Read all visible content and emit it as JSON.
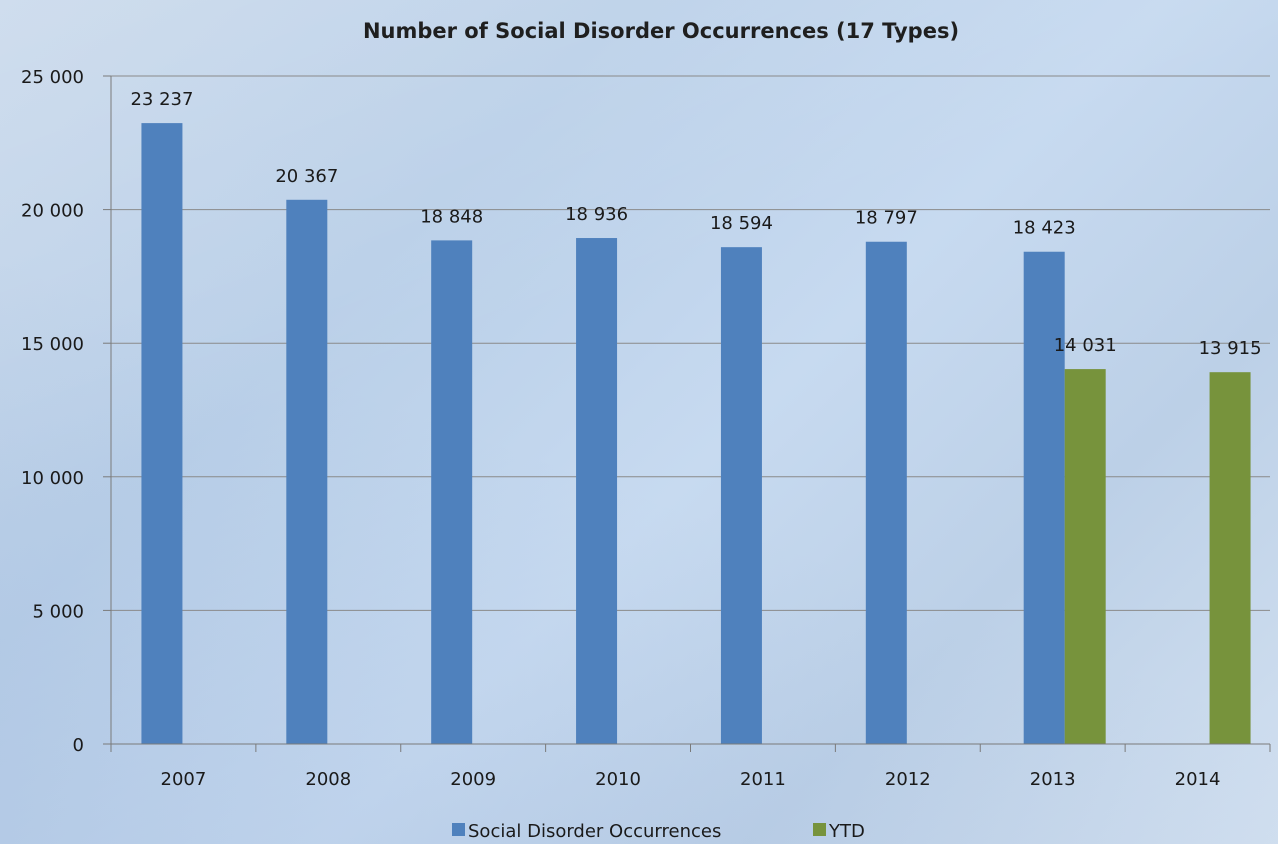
{
  "chart_data": {
    "type": "bar",
    "title": "Number of Social Disorder Occurrences (17 Types)",
    "xlabel": "",
    "ylabel": "",
    "categories": [
      "2007",
      "2008",
      "2009",
      "2010",
      "2011",
      "2012",
      "2013",
      "2014"
    ],
    "series": [
      {
        "name": "Social Disorder Occurrences",
        "color": "#4f81bd",
        "values": [
          23237,
          20367,
          18848,
          18936,
          18594,
          18797,
          18423,
          null
        ],
        "labels": [
          "23 237",
          "20 367",
          "18 848",
          "18 936",
          "18 594",
          "18 797",
          "18 423",
          ""
        ]
      },
      {
        "name": "YTD",
        "color": "#77933c",
        "values": [
          null,
          null,
          null,
          null,
          null,
          null,
          14031,
          13915
        ],
        "labels": [
          "",
          "",
          "",
          "",
          "",
          "",
          "14 031",
          "13 915"
        ]
      }
    ],
    "ylim": [
      0,
      25000
    ],
    "yticks": [
      0,
      5000,
      10000,
      15000,
      20000,
      25000
    ],
    "ytick_labels": [
      "0",
      "5 000",
      "10 000",
      "15 000",
      "20 000",
      "25 000"
    ],
    "grid": true,
    "legend_position": "bottom"
  }
}
